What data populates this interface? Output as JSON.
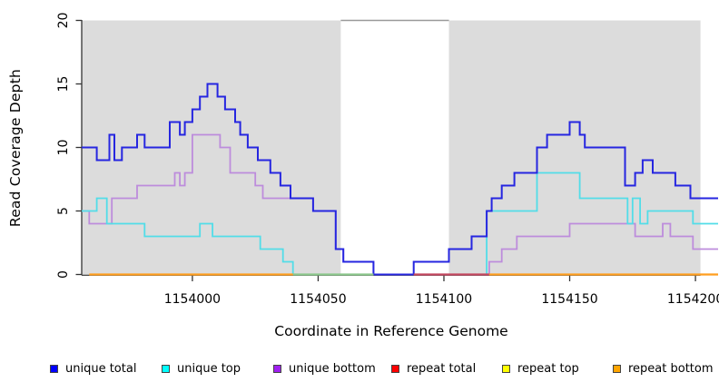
{
  "chart_data": {
    "type": "line",
    "subtype": "step-coverage",
    "title": "",
    "xlabel": "Coordinate in Reference Genome",
    "ylabel": "Read Coverage Depth",
    "xticks": [
      1154000,
      1154050,
      1154100,
      1154150,
      1154200
    ],
    "yticks": [
      0,
      5,
      10,
      15,
      20
    ],
    "xlim": [
      1153956,
      1154209
    ],
    "ylim": [
      0,
      20
    ],
    "grid": false,
    "legend_position": "bottom",
    "shaded_regions": [
      {
        "from": 1153956,
        "to": 1154059,
        "fill": "#dcdcdc"
      },
      {
        "from": 1154102,
        "to": 1154202,
        "fill": "#dcdcdc"
      }
    ],
    "gap_top_line": {
      "from": 1154059,
      "to": 1154102,
      "depth": 20,
      "color": "#9a9a9a"
    },
    "series": [
      {
        "name": "unique bottom",
        "line_color": "#bd8cdc",
        "legend_color": "#a020f0",
        "end": 1154209,
        "steps": [
          [
            1153956,
            5
          ],
          [
            1153959,
            4
          ],
          [
            1153968,
            6
          ],
          [
            1153978,
            7
          ],
          [
            1153993,
            8
          ],
          [
            1153995,
            7
          ],
          [
            1153997,
            8
          ],
          [
            1154000,
            11
          ],
          [
            1154011,
            10
          ],
          [
            1154015,
            8
          ],
          [
            1154025,
            7
          ],
          [
            1154028,
            6
          ],
          [
            1154048,
            5
          ],
          [
            1154057,
            2
          ],
          [
            1154060,
            1
          ],
          [
            1154072,
            0
          ],
          [
            1154118,
            1
          ],
          [
            1154123,
            2
          ],
          [
            1154129,
            3
          ],
          [
            1154150,
            4
          ],
          [
            1154176,
            3
          ],
          [
            1154187,
            4
          ],
          [
            1154190,
            3
          ],
          [
            1154199,
            2
          ]
        ]
      },
      {
        "name": "unique top",
        "line_color": "#52dde8",
        "legend_color": "#00ffff",
        "end": 1154209,
        "steps": [
          [
            1153956,
            5
          ],
          [
            1153962,
            6
          ],
          [
            1153966,
            4
          ],
          [
            1153981,
            3
          ],
          [
            1154003,
            4
          ],
          [
            1154008,
            3
          ],
          [
            1154027,
            2
          ],
          [
            1154036,
            1
          ],
          [
            1154040,
            0
          ],
          [
            1154117,
            5
          ],
          [
            1154137,
            8
          ],
          [
            1154154,
            6
          ],
          [
            1154173,
            4
          ],
          [
            1154175,
            6
          ],
          [
            1154178,
            4
          ],
          [
            1154181,
            5
          ],
          [
            1154199,
            4
          ]
        ]
      },
      {
        "name": "unique total",
        "line_color": "#2626e0",
        "legend_color": "#0000ff",
        "end": 1154209,
        "steps": [
          [
            1153956,
            10
          ],
          [
            1153962,
            9
          ],
          [
            1153967,
            11
          ],
          [
            1153969,
            9
          ],
          [
            1153972,
            10
          ],
          [
            1153978,
            11
          ],
          [
            1153981,
            10
          ],
          [
            1153991,
            12
          ],
          [
            1153995,
            11
          ],
          [
            1153997,
            12
          ],
          [
            1154000,
            13
          ],
          [
            1154003,
            14
          ],
          [
            1154006,
            15
          ],
          [
            1154010,
            14
          ],
          [
            1154013,
            13
          ],
          [
            1154017,
            12
          ],
          [
            1154019,
            11
          ],
          [
            1154022,
            10
          ],
          [
            1154026,
            9
          ],
          [
            1154031,
            8
          ],
          [
            1154035,
            7
          ],
          [
            1154039,
            6
          ],
          [
            1154048,
            5
          ],
          [
            1154057,
            2
          ],
          [
            1154060,
            1
          ],
          [
            1154072,
            0
          ],
          [
            1154088,
            1
          ],
          [
            1154102,
            2
          ],
          [
            1154111,
            3
          ],
          [
            1154117,
            5
          ],
          [
            1154119,
            6
          ],
          [
            1154123,
            7
          ],
          [
            1154128,
            8
          ],
          [
            1154137,
            10
          ],
          [
            1154141,
            11
          ],
          [
            1154150,
            12
          ],
          [
            1154154,
            11
          ],
          [
            1154156,
            10
          ],
          [
            1154172,
            7
          ],
          [
            1154176,
            8
          ],
          [
            1154179,
            9
          ],
          [
            1154183,
            8
          ],
          [
            1154192,
            7
          ],
          [
            1154198,
            6
          ]
        ]
      },
      {
        "name": "repeat total",
        "line_color": "#c4475f",
        "legend_color": "#ff0000",
        "zero_segments": [
          [
            1154088,
            1154118
          ]
        ]
      },
      {
        "name": "repeat top",
        "line_color": "#8cc88c",
        "legend_color": "#ffff00",
        "zero_segments": [
          [
            1154040,
            1154072
          ]
        ]
      },
      {
        "name": "repeat bottom",
        "line_color": "#ff9e1f",
        "legend_color": "#ffa500",
        "zero_segments": [
          [
            1153959,
            1154040
          ],
          [
            1154118,
            1154209
          ]
        ]
      }
    ],
    "axis_color": "#333333",
    "text_color": "#000000"
  }
}
